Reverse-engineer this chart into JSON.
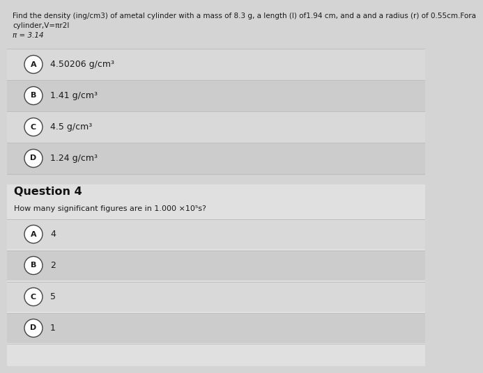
{
  "bg_color": "#d4d4d4",
  "q1_line1": "Find the density (ing/cm3) of ametal cylinder with a mass of 8.3 g, a length (l) of1.94 cm, and a and a radius (r) of 0.55cm.Fora",
  "q1_line2": "cylinder,V=πr2l",
  "q1_line3": "π = 3.14",
  "q1_options": [
    {
      "label": "A",
      "text": "4.50206 g/cm³"
    },
    {
      "label": "B",
      "text": "1.41 g/cm³"
    },
    {
      "label": "C",
      "text": "4.5 g/cm³"
    },
    {
      "label": "D",
      "text": "1.24 g/cm³"
    }
  ],
  "question4_header": "Question 4",
  "question4_subtext": "How many significant figures are in 1.000 ×10⁵s?",
  "q4_options": [
    {
      "label": "A",
      "text": "4"
    },
    {
      "label": "B",
      "text": "2"
    },
    {
      "label": "C",
      "text": "5"
    },
    {
      "label": "D",
      "text": "1"
    }
  ],
  "circle_facecolor": "#ffffff",
  "circle_edgecolor": "#444444",
  "text_color": "#1a1a1a",
  "header_color": "#111111",
  "separator_color": "#bbbbbb",
  "option_band_A": "#d9d9d9",
  "option_band_B": "#cccccc",
  "option_band_C": "#d9d9d9",
  "option_band_D": "#cccccc",
  "section2_bg": "#e0e0e0",
  "header_text_size": 7.5,
  "option_text_size": 9.0,
  "q4_header_size": 11.5
}
